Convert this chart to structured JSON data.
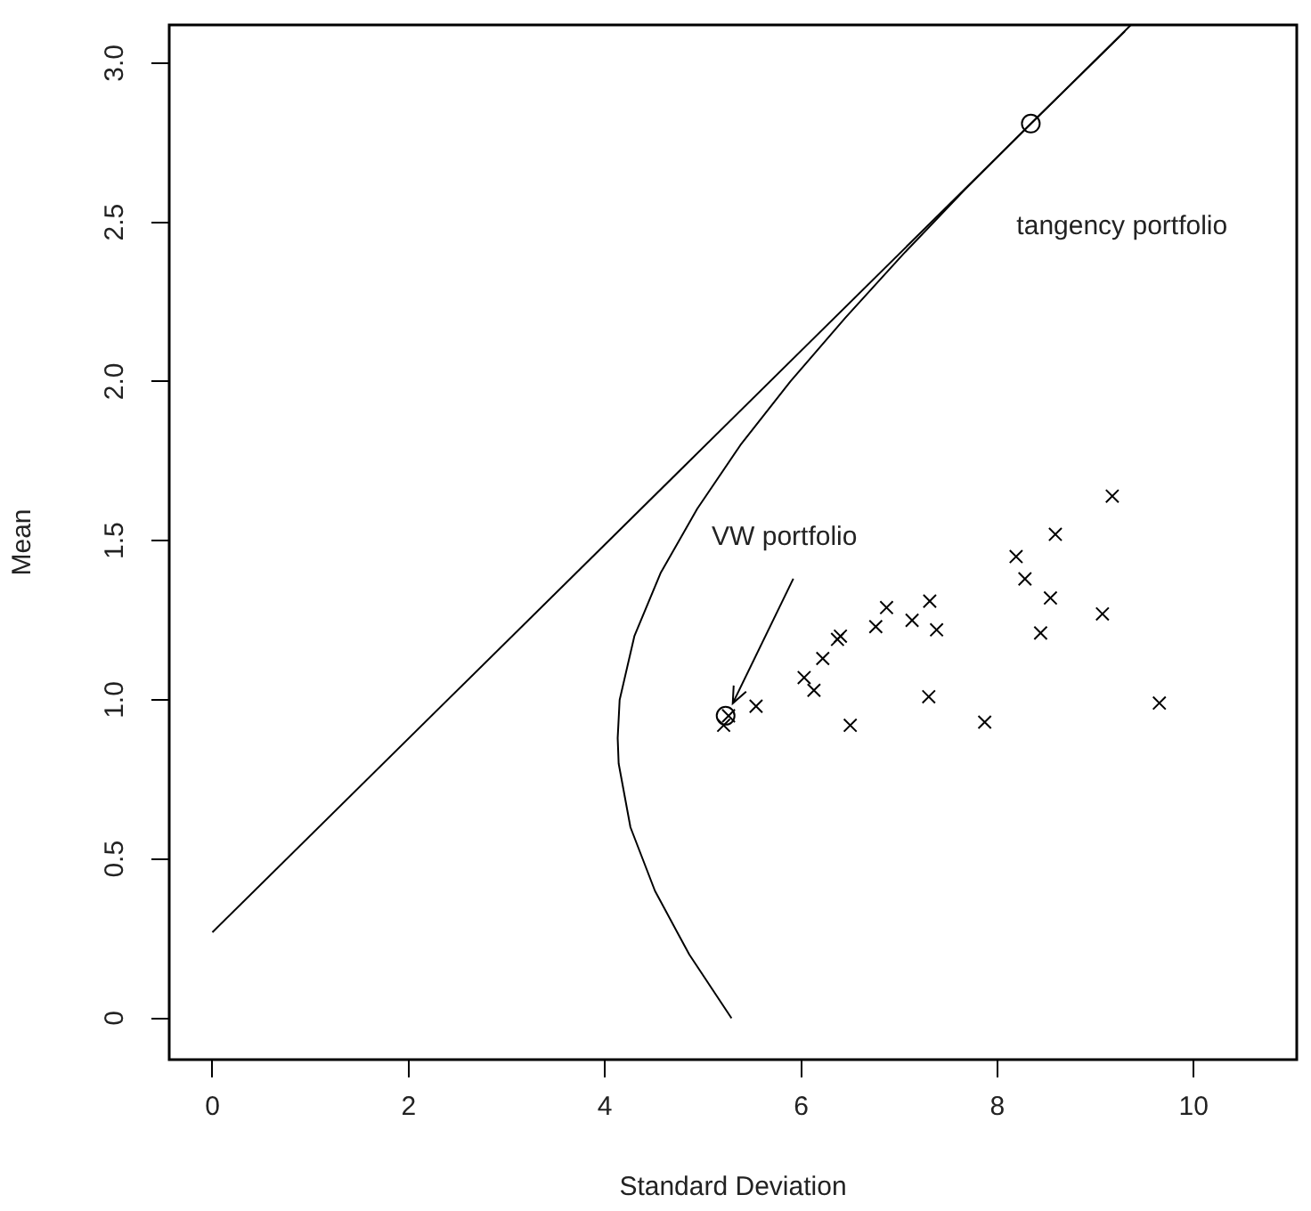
{
  "chart_data": {
    "type": "scatter",
    "xlabel": "Standard Deviation",
    "ylabel": "Mean",
    "xlim": [
      -0.44,
      11.05
    ],
    "ylim": [
      -0.13,
      3.12
    ],
    "xticks": [
      0,
      2,
      4,
      6,
      8,
      10
    ],
    "yticks": [
      0,
      {
        "value": 0.5,
        "label": "0.5"
      },
      {
        "value": 1,
        "label": "1.0"
      },
      {
        "value": 1.5,
        "label": "1.5"
      },
      {
        "value": 2,
        "label": "2.0"
      },
      {
        "value": 2.5,
        "label": "2.5"
      },
      {
        "value": 3,
        "label": "3.0"
      }
    ],
    "grid": false,
    "legend": false,
    "annotations": [
      "tangency portfolio",
      {
        "text": "VW portfolio",
        "x": 5.23,
        "y": 0.95
      }
    ],
    "series": [
      {
        "type": "line",
        "color": "#000000",
        "marker": "none",
        "x": [
          0,
          9.36
        ],
        "values": [
          0.27,
          3.12
        ]
      },
      {
        "type": "line",
        "color": "#000000",
        "marker": "none",
        "x": [
          5.29,
          4.86,
          4.51,
          4.26,
          4.14,
          4.13,
          4.15,
          4.3,
          4.57,
          4.94,
          5.38,
          5.89,
          6.45,
          7.04,
          7.66,
          8.34,
          8.97,
          9.3
        ],
        "values": [
          0,
          0.2,
          0.4,
          0.6,
          0.8,
          0.88,
          1,
          1.2,
          1.4,
          1.6,
          1.8,
          2,
          2.2,
          2.4,
          2.6,
          2.81,
          3,
          3.1
        ]
      },
      {
        "color": "#000000",
        "marker": "cross",
        "x": [
          9.17,
          8.59,
          8.19,
          8.28,
          8.54,
          9.07,
          8.44,
          7.31,
          7.38,
          7.13,
          6.87,
          6.76,
          6.4,
          6.37,
          6.22,
          6.03,
          6.13,
          7.3,
          6.5,
          7.87,
          9.65,
          5.54,
          5.21,
          5.26
        ],
        "values": [
          1.64,
          1.52,
          1.45,
          1.38,
          1.32,
          1.27,
          1.21,
          1.31,
          1.22,
          1.25,
          1.29,
          1.23,
          1.2,
          1.19,
          1.13,
          1.07,
          1.03,
          1.01,
          0.92,
          0.93,
          0.99,
          0.98,
          0.92,
          0.95
        ]
      },
      {
        "color": "#000000",
        "marker": "circle",
        "x": [
          8.34,
          5.23
        ],
        "values": [
          2.81,
          0.95
        ]
      }
    ]
  }
}
